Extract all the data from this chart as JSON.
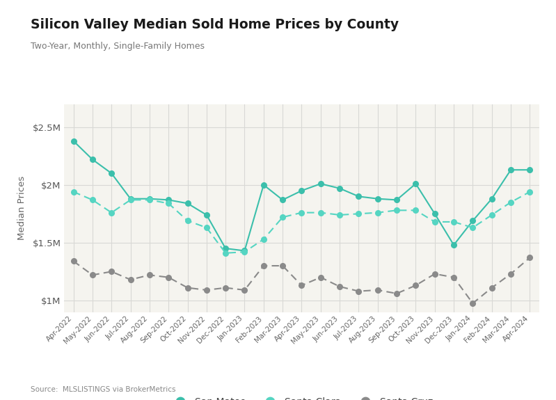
{
  "title": "Silicon Valley Median Sold Home Prices by County",
  "subtitle": "Two-Year, Monthly, Single-Family Homes",
  "source": "Source:  MLSLISTINGS via BrokerMetrics",
  "ylabel": "Median Prices",
  "months": [
    "Apr-2022",
    "May-2022",
    "Jun-2022",
    "Jul-2022",
    "Aug-2022",
    "Sep-2022",
    "Oct-2022",
    "Nov-2022",
    "Dec-2022",
    "Jan-2023",
    "Feb-2023",
    "Mar-2023",
    "Apr-2023",
    "May-2023",
    "Jun-2023",
    "Jul-2023",
    "Aug-2023",
    "Sep-2023",
    "Oct-2023",
    "Nov-2023",
    "Dec-2023",
    "Jan-2024",
    "Feb-2024",
    "Mar-2024",
    "Apr-2024"
  ],
  "san_mateo": [
    2380000,
    2220000,
    2100000,
    1880000,
    1880000,
    1870000,
    1840000,
    1740000,
    1450000,
    1430000,
    2000000,
    1870000,
    1950000,
    2010000,
    1970000,
    1900000,
    1880000,
    1870000,
    2010000,
    1750000,
    1480000,
    1690000,
    1880000,
    2130000,
    2130000
  ],
  "santa_clara": [
    1940000,
    1870000,
    1760000,
    1870000,
    1870000,
    1840000,
    1690000,
    1630000,
    1410000,
    1420000,
    1530000,
    1720000,
    1760000,
    1760000,
    1740000,
    1750000,
    1760000,
    1780000,
    1780000,
    1680000,
    1680000,
    1630000,
    1740000,
    1850000,
    1940000
  ],
  "santa_cruz": [
    1340000,
    1220000,
    1250000,
    1180000,
    1220000,
    1200000,
    1110000,
    1090000,
    1110000,
    1090000,
    1300000,
    1300000,
    1130000,
    1200000,
    1120000,
    1080000,
    1090000,
    1060000,
    1130000,
    1230000,
    1200000,
    975000,
    1110000,
    1230000,
    1370000
  ],
  "san_mateo_color": "#3bbfab",
  "santa_clara_color": "#55d5c2",
  "santa_cruz_color": "#8a8a8a",
  "plot_bg_color": "#f5f4ef",
  "outer_bg_color": "#ffffff",
  "grid_color": "#d8d8d5",
  "ylim": [
    900000,
    2700000
  ],
  "yticks": [
    1000000,
    1500000,
    2000000,
    2500000
  ],
  "ytick_labels": [
    "$1M",
    "$1.5M",
    "$2M",
    "$2.5M"
  ]
}
